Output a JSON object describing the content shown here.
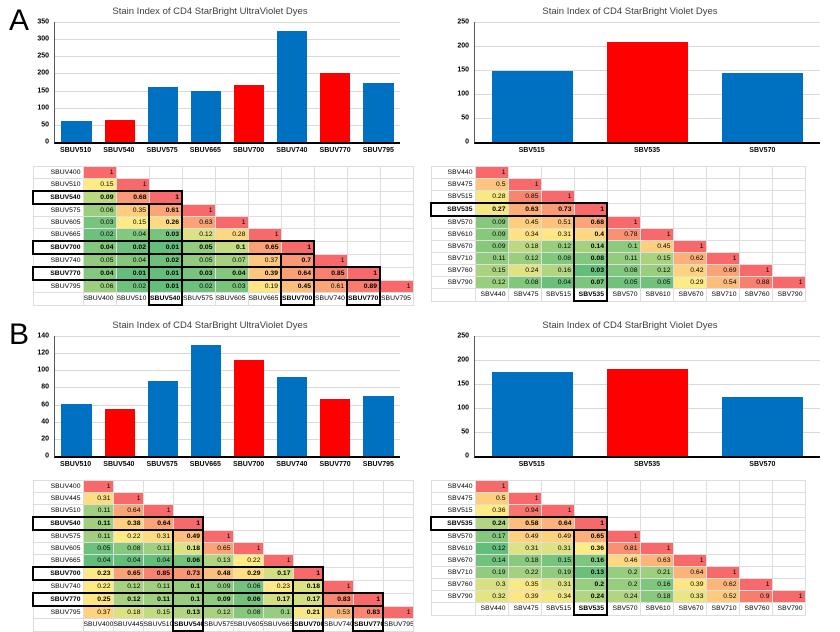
{
  "figure": {
    "panels": [
      {
        "label": "A"
      },
      {
        "label": "B"
      }
    ]
  },
  "colors": {
    "bar_blue": "#0070C0",
    "bar_red": "#FF0000",
    "heat_green": "#63BE7B",
    "heat_yellow": "#FFEB84",
    "heat_red": "#F8696B",
    "gridline": "#D9D9D9",
    "axis": "#000000",
    "title_text": "#3F3F3F",
    "highlight_border": "#000000"
  },
  "chart_data": [
    {
      "id": "panel-a-ultraviolet-bar",
      "type": "bar",
      "title": "Stain Index of CD4 StarBright UltraViolet Dyes",
      "categories": [
        "SBUV510",
        "SBUV540",
        "SBUV575",
        "SBUV665",
        "SBUV700",
        "SBUV740",
        "SBUV770",
        "SBUV795"
      ],
      "values": [
        60,
        65,
        160,
        149,
        165,
        325,
        201,
        173
      ],
      "bar_colors": [
        "blue",
        "red",
        "blue",
        "blue",
        "red",
        "blue",
        "red",
        "blue"
      ],
      "xlabel": "",
      "ylabel": "",
      "ylim": [
        0,
        350
      ],
      "ytick_step": 50,
      "grid": true,
      "legend": "none"
    },
    {
      "id": "panel-a-violet-bar",
      "type": "bar",
      "title": "Stain Index of CD4 StarBright Violet Dyes",
      "categories": [
        "SBV515",
        "SBV535",
        "SBV570"
      ],
      "values": [
        148,
        208,
        143
      ],
      "bar_colors": [
        "blue",
        "red",
        "blue"
      ],
      "xlabel": "",
      "ylabel": "",
      "ylim": [
        0,
        250
      ],
      "ytick_step": 50,
      "grid": true,
      "legend": "none"
    },
    {
      "id": "panel-a-ultraviolet-correlation-matrix",
      "type": "heatmap",
      "labels": [
        "SBUV400",
        "SBUV510",
        "SBUV540",
        "SBUV575",
        "SBUV605",
        "SBUV665",
        "SBUV700",
        "SBUV740",
        "SBUV770",
        "SBUV795"
      ],
      "rows": [
        [
          1
        ],
        [
          0.15,
          1
        ],
        [
          0.09,
          0.68,
          1
        ],
        [
          0.06,
          0.35,
          0.61,
          1
        ],
        [
          0.03,
          0.15,
          0.26,
          0.63,
          1
        ],
        [
          0.02,
          0.04,
          0.03,
          0.12,
          0.28,
          1
        ],
        [
          0.04,
          0.02,
          0.01,
          0.05,
          0.1,
          0.65,
          1
        ],
        [
          0.05,
          0.04,
          0.02,
          0.05,
          0.07,
          0.37,
          0.7,
          1
        ],
        [
          0.04,
          0.01,
          0.01,
          0.03,
          0.04,
          0.39,
          0.64,
          0.85,
          1
        ],
        [
          0.06,
          0.02,
          0.01,
          0.02,
          0.03,
          0.19,
          0.45,
          0.61,
          0.89,
          1
        ]
      ],
      "highlighted": [
        "SBUV540",
        "SBUV700",
        "SBUV770"
      ]
    },
    {
      "id": "panel-a-violet-correlation-matrix",
      "type": "heatmap",
      "labels": [
        "SBV440",
        "SBV475",
        "SBV515",
        "SBV535",
        "SBV570",
        "SBV610",
        "SBV670",
        "SBV710",
        "SBV760",
        "SBV790"
      ],
      "rows": [
        [
          1
        ],
        [
          0.5,
          1
        ],
        [
          0.28,
          0.85,
          1
        ],
        [
          0.27,
          0.63,
          0.73,
          1
        ],
        [
          0.09,
          0.45,
          0.51,
          0.68,
          1
        ],
        [
          0.09,
          0.34,
          0.31,
          0.4,
          0.78,
          1
        ],
        [
          0.09,
          0.18,
          0.12,
          0.14,
          0.1,
          0.45,
          1
        ],
        [
          0.11,
          0.12,
          0.08,
          0.08,
          0.11,
          0.15,
          0.62,
          1
        ],
        [
          0.15,
          0.24,
          0.16,
          0.03,
          0.08,
          0.12,
          0.42,
          0.69,
          1
        ],
        [
          0.12,
          0.08,
          0.04,
          0.07,
          0.05,
          0.05,
          0.29,
          0.54,
          0.88,
          1
        ]
      ],
      "highlighted": [
        "SBV535"
      ]
    },
    {
      "id": "panel-b-ultraviolet-bar",
      "type": "bar",
      "title": "Stain Index of CD4 StarBright UltraViolet Dyes",
      "categories": [
        "SBUV510",
        "SBUV540",
        "SBUV575",
        "SBUV665",
        "SBUV700",
        "SBUV740",
        "SBUV770",
        "SBUV795"
      ],
      "values": [
        61,
        55,
        87,
        130,
        112,
        92,
        66,
        70
      ],
      "bar_colors": [
        "blue",
        "red",
        "blue",
        "blue",
        "red",
        "blue",
        "red",
        "blue"
      ],
      "xlabel": "",
      "ylabel": "",
      "ylim": [
        0,
        140
      ],
      "ytick_step": 20,
      "grid": true,
      "legend": "none"
    },
    {
      "id": "panel-b-violet-bar",
      "type": "bar",
      "title": "Stain Index of CD4 StarBright Violet Dyes",
      "categories": [
        "SBV515",
        "SBV535",
        "SBV570"
      ],
      "values": [
        176,
        181,
        122
      ],
      "bar_colors": [
        "blue",
        "red",
        "blue"
      ],
      "xlabel": "",
      "ylabel": "",
      "ylim": [
        0,
        250
      ],
      "ytick_step": 50,
      "grid": true,
      "legend": "none"
    },
    {
      "id": "panel-b-ultraviolet-correlation-matrix",
      "type": "heatmap",
      "labels": [
        "SBUV400",
        "SBUV445",
        "SBUV510",
        "SBUV540",
        "SBUV575",
        "SBUV605",
        "SBUV665",
        "SBUV700",
        "SBUV740",
        "SBUV770",
        "SBUV795"
      ],
      "rows": [
        [
          1
        ],
        [
          0.31,
          1
        ],
        [
          0.11,
          0.64,
          1
        ],
        [
          0.11,
          0.38,
          0.64,
          1
        ],
        [
          0.11,
          0.22,
          0.31,
          0.49,
          1
        ],
        [
          0.05,
          0.08,
          0.11,
          0.18,
          0.65,
          1
        ],
        [
          0.04,
          0.04,
          0.04,
          0.06,
          0.13,
          0.22,
          1
        ],
        [
          0.23,
          0.65,
          0.85,
          0.73,
          0.48,
          0.29,
          0.17,
          1
        ],
        [
          0.22,
          0.12,
          0.11,
          0.1,
          0.09,
          0.06,
          0.23,
          0.18,
          1
        ],
        [
          0.25,
          0.12,
          0.11,
          0.1,
          0.09,
          0.06,
          0.17,
          0.17,
          0.83,
          1
        ],
        [
          0.37,
          0.18,
          0.15,
          0.13,
          0.12,
          0.08,
          0.1,
          0.21,
          0.53,
          0.83,
          1
        ]
      ],
      "highlighted": [
        "SBUV540",
        "SBUV700",
        "SBUV770"
      ]
    },
    {
      "id": "panel-b-violet-correlation-matrix",
      "type": "heatmap",
      "labels": [
        "SBV440",
        "SBV475",
        "SBV515",
        "SBV535",
        "SBV570",
        "SBV610",
        "SBV670",
        "SBV710",
        "SBV760",
        "SBV790"
      ],
      "rows": [
        [
          1
        ],
        [
          0.5,
          1
        ],
        [
          0.36,
          0.94,
          1
        ],
        [
          0.24,
          0.58,
          0.64,
          1
        ],
        [
          0.17,
          0.49,
          0.49,
          0.65,
          1
        ],
        [
          0.12,
          0.31,
          0.31,
          0.36,
          0.81,
          1
        ],
        [
          0.14,
          0.18,
          0.15,
          0.16,
          0.46,
          0.63,
          1
        ],
        [
          0.19,
          0.22,
          0.19,
          0.13,
          0.2,
          0.21,
          0.64,
          1
        ],
        [
          0.3,
          0.35,
          0.31,
          0.2,
          0.2,
          0.16,
          0.39,
          0.62,
          1
        ],
        [
          0.32,
          0.39,
          0.34,
          0.24,
          0.24,
          0.18,
          0.33,
          0.52,
          0.9,
          1
        ]
      ],
      "highlighted": [
        "SBV535"
      ]
    }
  ]
}
